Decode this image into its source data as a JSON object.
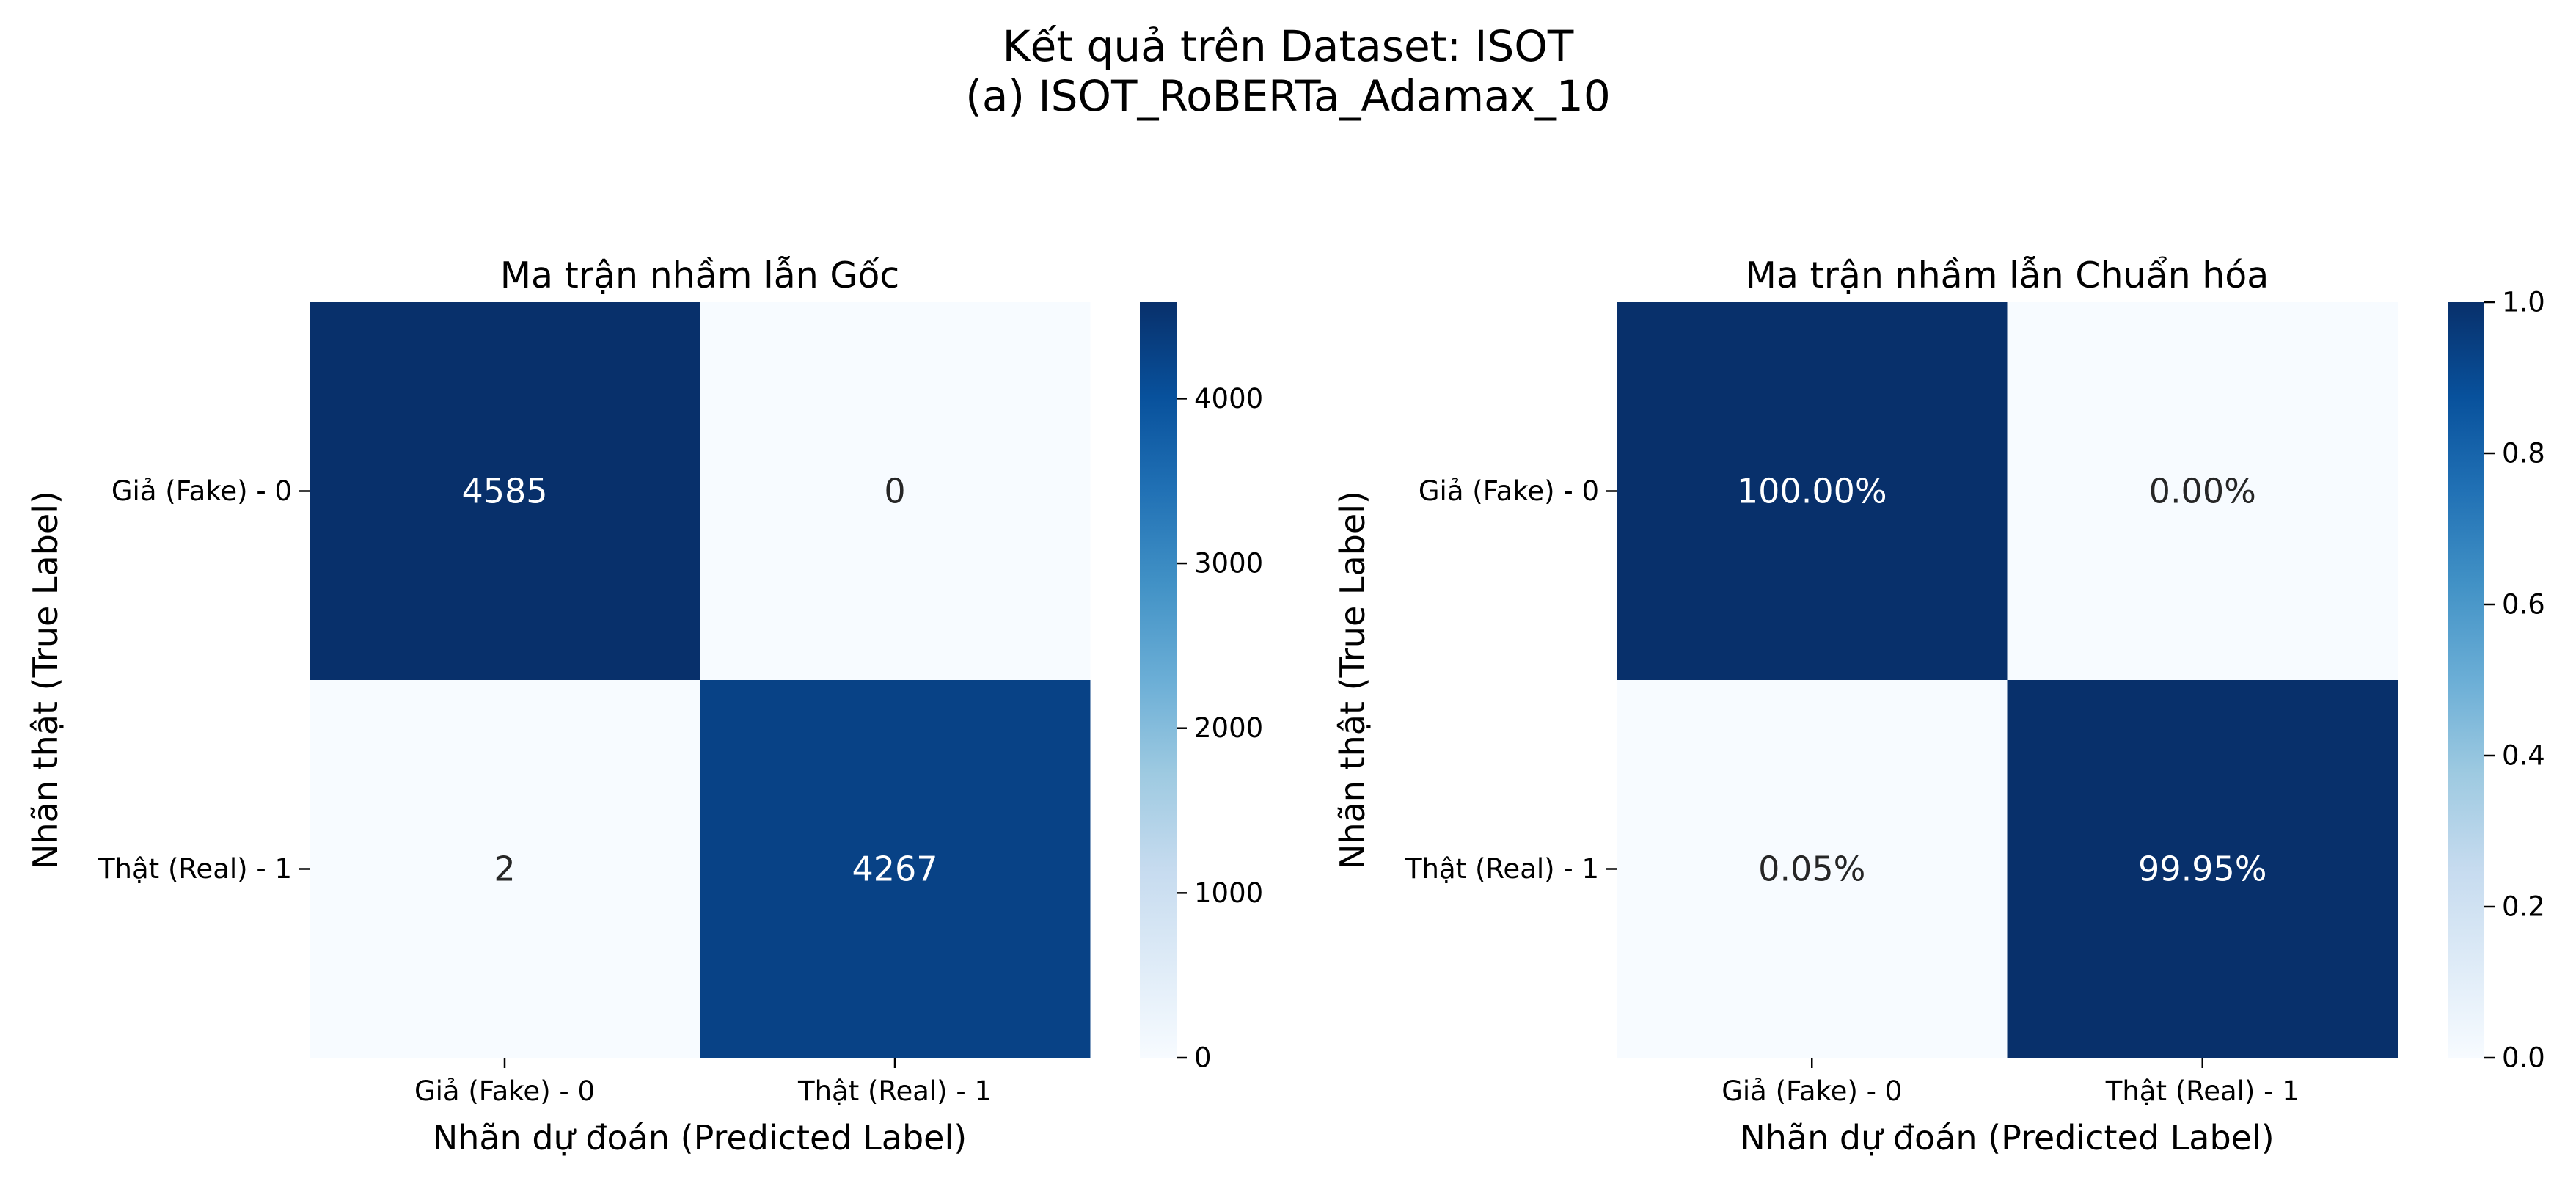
{
  "figure": {
    "title_line1": "Kết quả trên Dataset: ISOT",
    "title_line2": "(a) ISOT_RoBERTa_Adamax_10"
  },
  "chart_data": [
    {
      "type": "heatmap",
      "title": "Ma trận nhầm lẫn Gốc",
      "xlabel": "Nhãn dự đoán (Predicted Label)",
      "ylabel": "Nhãn thật (True Label)",
      "x_categories": [
        "Giả (Fake) - 0",
        "Thật (Real) - 1"
      ],
      "y_categories": [
        "Giả (Fake) - 0",
        "Thật (Real) - 1"
      ],
      "values": [
        [
          4585,
          0
        ],
        [
          2,
          4267
        ]
      ],
      "cell_labels": [
        [
          "4585",
          "0"
        ],
        [
          "2",
          "4267"
        ]
      ],
      "colormap": "Blues",
      "vmin": 0,
      "vmax": 4585,
      "colorbar_ticks": [
        0,
        1000,
        2000,
        3000,
        4000
      ],
      "colorbar_tick_labels": [
        "0",
        "1000",
        "2000",
        "3000",
        "4000"
      ]
    },
    {
      "type": "heatmap",
      "title": "Ma trận nhầm lẫn Chuẩn hóa",
      "xlabel": "Nhãn dự đoán (Predicted Label)",
      "ylabel": "Nhãn thật (True Label)",
      "x_categories": [
        "Giả (Fake) - 0",
        "Thật (Real) - 1"
      ],
      "y_categories": [
        "Giả (Fake) - 0",
        "Thật (Real) - 1"
      ],
      "values": [
        [
          1.0,
          0.0
        ],
        [
          0.0005,
          0.9995
        ]
      ],
      "cell_labels": [
        [
          "100.00%",
          "0.00%"
        ],
        [
          "0.05%",
          "99.95%"
        ]
      ],
      "colormap": "Blues",
      "vmin": 0,
      "vmax": 1.0,
      "colorbar_ticks": [
        0,
        0.2,
        0.4,
        0.6,
        0.8,
        1.0
      ],
      "colorbar_tick_labels": [
        "0.0",
        "0.2",
        "0.4",
        "0.6",
        "0.8",
        "1.0"
      ]
    }
  ]
}
